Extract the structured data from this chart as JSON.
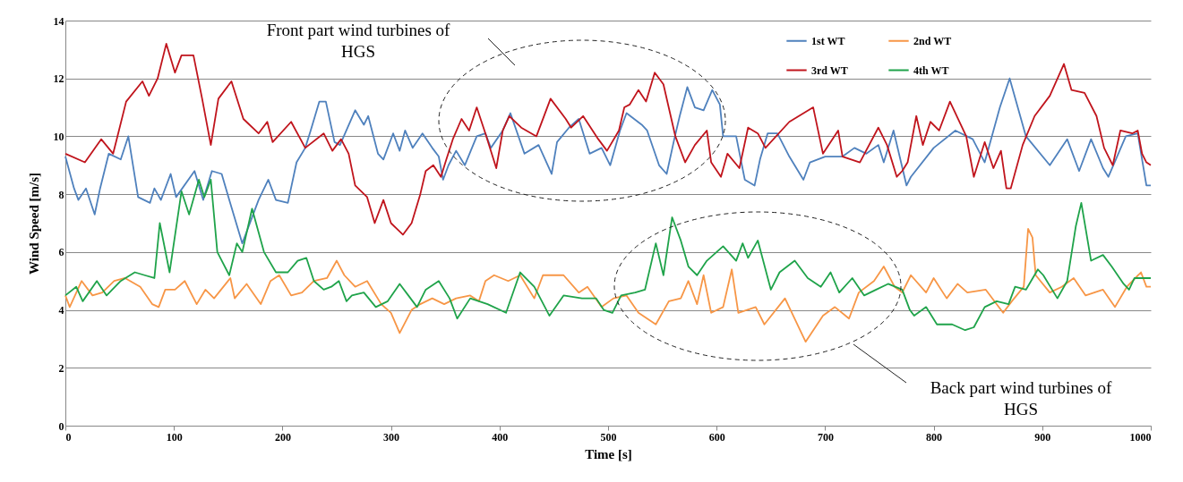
{
  "chart_data": {
    "type": "line",
    "xlabel": "Time [s]",
    "ylabel": "Wind Speed [m/s]",
    "xlim": [
      0,
      1000
    ],
    "ylim": [
      0,
      14
    ],
    "xticks": [
      0,
      100,
      200,
      300,
      400,
      500,
      600,
      700,
      800,
      900,
      1000
    ],
    "yticks": [
      0,
      2,
      4,
      6,
      8,
      10,
      12,
      14
    ],
    "grid": "y",
    "legend": "top right",
    "marker": "none",
    "line_style": "solid",
    "series": [
      {
        "name": "1st WT",
        "color": "#4f81bd",
        "x": [
          0,
          8,
          12,
          19,
          27,
          32,
          40,
          51,
          58,
          67,
          78,
          82,
          88,
          97,
          102,
          119,
          127,
          135,
          144,
          151,
          163,
          178,
          187,
          194,
          205,
          213,
          221,
          226,
          234,
          240,
          248,
          253,
          267,
          275,
          279,
          288,
          293,
          302,
          308,
          313,
          320,
          329,
          338,
          344,
          348,
          353,
          360,
          368,
          379,
          387,
          392,
          403,
          410,
          423,
          436,
          448,
          453,
          464,
          473,
          483,
          494,
          502,
          511,
          517,
          531,
          536,
          547,
          554,
          561,
          566,
          573,
          580,
          588,
          596,
          603,
          606,
          618,
          626,
          635,
          640,
          647,
          656,
          667,
          680,
          686,
          700,
          716,
          727,
          738,
          749,
          754,
          763,
          775,
          779,
          800,
          820,
          836,
          847,
          861,
          870,
          885,
          907,
          923,
          934,
          945,
          956,
          961,
          977,
          988,
          996,
          1000
        ],
        "values": [
          9.3,
          8.2,
          7.8,
          8.2,
          7.3,
          8.2,
          9.4,
          9.2,
          10.0,
          7.9,
          7.7,
          8.2,
          7.8,
          8.7,
          7.9,
          8.8,
          7.8,
          8.8,
          8.7,
          7.8,
          6.3,
          7.8,
          8.5,
          7.8,
          7.7,
          9.1,
          9.6,
          10.2,
          11.2,
          11.2,
          9.8,
          9.7,
          10.9,
          10.4,
          10.7,
          9.4,
          9.2,
          10.1,
          9.5,
          10.2,
          9.6,
          10.1,
          9.6,
          9.3,
          8.5,
          9.0,
          9.5,
          9.0,
          10.0,
          10.1,
          9.6,
          10.2,
          10.8,
          9.4,
          9.7,
          8.7,
          9.8,
          10.3,
          10.6,
          9.4,
          9.6,
          9.0,
          10.2,
          10.8,
          10.4,
          10.2,
          9.0,
          8.7,
          9.9,
          10.7,
          11.7,
          11.0,
          10.9,
          11.6,
          11.1,
          10.0,
          10.0,
          8.5,
          8.3,
          9.2,
          10.1,
          10.1,
          9.3,
          8.5,
          9.1,
          9.3,
          9.3,
          9.6,
          9.4,
          9.7,
          9.1,
          10.2,
          8.3,
          8.6,
          9.6,
          10.2,
          9.9,
          9.1,
          11.0,
          12.0,
          10.0,
          9.0,
          9.9,
          8.8,
          9.9,
          8.9,
          8.6,
          10.0,
          10.1,
          8.3,
          8.3
        ]
      },
      {
        "name": "2nd WT",
        "color": "#f79646",
        "x": [
          0,
          4,
          15,
          25,
          34,
          45,
          55,
          69,
          80,
          86,
          92,
          101,
          110,
          121,
          129,
          137,
          152,
          156,
          167,
          180,
          189,
          197,
          208,
          218,
          229,
          241,
          250,
          257,
          267,
          278,
          291,
          300,
          308,
          319,
          327,
          338,
          349,
          360,
          373,
          381,
          387,
          395,
          408,
          419,
          432,
          440,
          459,
          473,
          481,
          494,
          505,
          517,
          528,
          544,
          556,
          567,
          574,
          582,
          588,
          595,
          606,
          614,
          620,
          636,
          644,
          663,
          682,
          698,
          709,
          722,
          731,
          745,
          754,
          764,
          771,
          779,
          793,
          800,
          812,
          822,
          831,
          848,
          864,
          872,
          883,
          887,
          891,
          894,
          907,
          918,
          929,
          940,
          956,
          967,
          978,
          991,
          996,
          1000
        ],
        "values": [
          4.5,
          4.1,
          5.0,
          4.5,
          4.6,
          5.0,
          5.1,
          4.8,
          4.2,
          4.1,
          4.7,
          4.7,
          5.0,
          4.2,
          4.7,
          4.4,
          5.1,
          4.4,
          4.9,
          4.2,
          5.0,
          5.2,
          4.5,
          4.6,
          5.0,
          5.1,
          5.7,
          5.2,
          4.8,
          5.0,
          4.2,
          3.9,
          3.2,
          4.0,
          4.2,
          4.4,
          4.2,
          4.4,
          4.5,
          4.3,
          5.0,
          5.2,
          5.0,
          5.2,
          4.4,
          5.2,
          5.2,
          4.6,
          4.8,
          4.1,
          4.4,
          4.5,
          3.9,
          3.5,
          4.3,
          4.4,
          5.0,
          4.2,
          5.2,
          3.9,
          4.1,
          5.4,
          3.9,
          4.1,
          3.5,
          4.4,
          2.9,
          3.8,
          4.1,
          3.7,
          4.6,
          5.0,
          5.5,
          4.8,
          4.6,
          5.2,
          4.6,
          5.1,
          4.4,
          4.9,
          4.6,
          4.7,
          3.9,
          4.3,
          4.8,
          6.8,
          6.5,
          5.2,
          4.6,
          4.8,
          5.1,
          4.5,
          4.7,
          4.1,
          4.8,
          5.3,
          4.8,
          4.8
        ]
      },
      {
        "name": "3rd WT",
        "color": "#c0141c",
        "x": [
          0,
          18,
          33,
          44,
          48,
          56,
          71,
          77,
          85,
          93,
          101,
          107,
          118,
          126,
          134,
          141,
          153,
          164,
          178,
          186,
          191,
          208,
          221,
          238,
          246,
          254,
          261,
          267,
          278,
          285,
          293,
          300,
          311,
          319,
          327,
          332,
          339,
          346,
          351,
          357,
          365,
          372,
          379,
          387,
          397,
          403,
          409,
          420,
          434,
          447,
          461,
          466,
          477,
          491,
          499,
          510,
          515,
          520,
          528,
          535,
          543,
          551,
          562,
          571,
          580,
          591,
          595,
          604,
          610,
          621,
          629,
          638,
          645,
          667,
          689,
          698,
          712,
          716,
          732,
          749,
          757,
          766,
          771,
          776,
          784,
          790,
          797,
          805,
          815,
          830,
          837,
          847,
          855,
          862,
          867,
          871,
          882,
          893,
          907,
          920,
          927,
          939,
          950,
          957,
          965,
          972,
          983,
          988,
          992,
          996,
          1000
        ],
        "values": [
          9.4,
          9.1,
          9.9,
          9.4,
          10.0,
          11.2,
          11.9,
          11.4,
          12.0,
          13.2,
          12.2,
          12.8,
          12.8,
          11.3,
          9.7,
          11.3,
          11.9,
          10.6,
          10.1,
          10.5,
          9.8,
          10.5,
          9.6,
          10.1,
          9.5,
          9.9,
          9.4,
          8.3,
          7.9,
          7.0,
          7.8,
          7.0,
          6.6,
          7.0,
          8.0,
          8.8,
          9.0,
          8.6,
          9.2,
          9.9,
          10.6,
          10.2,
          11.0,
          10.1,
          8.9,
          10.2,
          10.7,
          10.3,
          10.0,
          11.3,
          10.6,
          10.3,
          10.7,
          9.9,
          9.5,
          10.2,
          11.0,
          11.1,
          11.6,
          11.2,
          12.2,
          11.8,
          10.0,
          9.1,
          9.7,
          10.2,
          9.1,
          8.6,
          9.4,
          8.9,
          10.3,
          10.1,
          9.6,
          10.5,
          11.0,
          9.4,
          10.2,
          9.3,
          9.1,
          10.3,
          9.7,
          8.6,
          8.8,
          9.1,
          10.7,
          9.7,
          10.5,
          10.2,
          11.2,
          10.0,
          8.6,
          9.8,
          8.9,
          9.5,
          8.2,
          8.2,
          9.7,
          10.7,
          11.4,
          12.5,
          11.6,
          11.5,
          10.7,
          9.6,
          9.0,
          10.2,
          10.1,
          10.2,
          9.4,
          9.1,
          9.0
        ]
      },
      {
        "name": "4th WT",
        "color": "#1fa34a",
        "x": [
          0,
          10,
          16,
          29,
          38,
          51,
          64,
          73,
          82,
          87,
          96,
          107,
          114,
          123,
          128,
          134,
          140,
          151,
          158,
          163,
          172,
          183,
          194,
          205,
          214,
          222,
          229,
          238,
          245,
          252,
          259,
          264,
          275,
          286,
          297,
          308,
          316,
          324,
          332,
          344,
          354,
          361,
          373,
          389,
          406,
          419,
          432,
          446,
          459,
          476,
          489,
          496,
          504,
          512,
          525,
          534,
          544,
          551,
          559,
          567,
          574,
          582,
          591,
          606,
          618,
          624,
          629,
          638,
          650,
          658,
          672,
          684,
          696,
          705,
          713,
          725,
          736,
          747,
          758,
          771,
          778,
          782,
          793,
          803,
          817,
          829,
          837,
          847,
          858,
          869,
          875,
          885,
          896,
          901,
          914,
          923,
          931,
          936,
          945,
          956,
          964,
          975,
          980,
          985,
          996,
          1000
        ],
        "values": [
          4.5,
          4.8,
          4.3,
          5.0,
          4.5,
          5.0,
          5.3,
          5.2,
          5.1,
          7.0,
          5.3,
          8.1,
          7.3,
          8.5,
          7.9,
          8.5,
          6.0,
          5.2,
          6.3,
          6.0,
          7.5,
          6.0,
          5.3,
          5.3,
          5.7,
          5.8,
          5.0,
          4.7,
          4.8,
          5.0,
          4.3,
          4.5,
          4.6,
          4.1,
          4.3,
          4.9,
          4.5,
          4.1,
          4.7,
          5.0,
          4.4,
          3.7,
          4.4,
          4.2,
          3.9,
          5.3,
          4.8,
          3.8,
          4.5,
          4.4,
          4.4,
          4.0,
          3.9,
          4.5,
          4.6,
          4.7,
          6.3,
          5.2,
          7.2,
          6.4,
          5.5,
          5.2,
          5.7,
          6.2,
          5.7,
          6.3,
          5.8,
          6.4,
          4.7,
          5.3,
          5.7,
          5.1,
          4.8,
          5.3,
          4.6,
          5.1,
          4.5,
          4.7,
          4.9,
          4.7,
          4.0,
          3.8,
          4.1,
          3.5,
          3.5,
          3.3,
          3.4,
          4.1,
          4.3,
          4.2,
          4.8,
          4.7,
          5.4,
          5.2,
          4.4,
          5.0,
          6.9,
          7.7,
          5.7,
          5.9,
          5.5,
          4.9,
          4.7,
          5.1,
          5.1,
          5.1
        ]
      }
    ],
    "annotations": [
      "Front part wind turbines of HGS",
      "Back part wind turbines of HGS"
    ]
  }
}
